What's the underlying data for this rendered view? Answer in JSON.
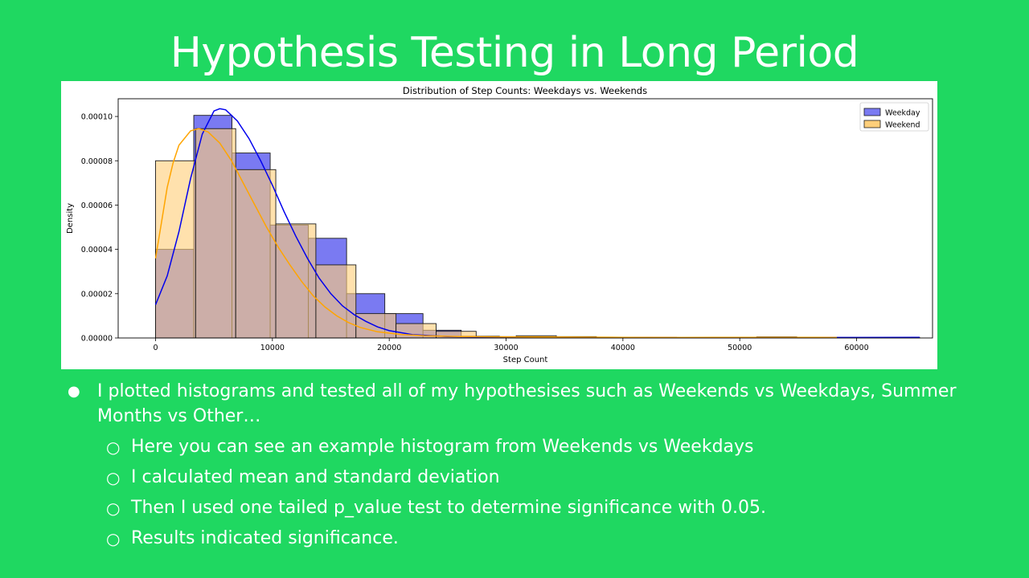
{
  "slide": {
    "title": "Hypothesis Testing in Long Period",
    "bullets": [
      {
        "text": " I plotted histograms and tested all of my hypothesises such as Weekends vs Weekdays, Summer Months vs Other…",
        "children": [
          "Here you can see an example histogram from Weekends vs Weekdays",
          "I calculated mean and standard deviation",
          "Then I used one tailed p_value test to determine significance with 0.05.",
          "Results indicated significance."
        ]
      }
    ]
  },
  "chart_data": {
    "type": "bar",
    "title": "Distribution of Step Counts: Weekdays vs. Weekends",
    "xlabel": "Step Count",
    "ylabel": "Density",
    "xlim": [
      -3200,
      66500
    ],
    "ylim": [
      0,
      0.000108
    ],
    "xticks": [
      0,
      10000,
      20000,
      30000,
      40000,
      50000,
      60000
    ],
    "xtick_labels": [
      "0",
      "10000",
      "20000",
      "30000",
      "40000",
      "50000",
      "60000"
    ],
    "yticks": [
      0,
      2e-05,
      4e-05,
      6e-05,
      8e-05,
      0.0001
    ],
    "ytick_labels": [
      "0.00000",
      "0.00002",
      "0.00004",
      "0.00006",
      "0.00008",
      "0.00010"
    ],
    "legend_position": "top-right",
    "series": [
      {
        "name": "Weekday",
        "color": "#0000ee",
        "bar_fill": "#7a7af2",
        "bins": [
          [
            0,
            3270,
            4e-05
          ],
          [
            3270,
            6540,
            0.0001005
          ],
          [
            6540,
            9810,
            8.35e-05
          ],
          [
            9810,
            13080,
            5.1e-05
          ],
          [
            13080,
            16350,
            4.5e-05
          ],
          [
            16350,
            19620,
            2e-05
          ],
          [
            19620,
            22890,
            1.1e-05
          ],
          [
            22890,
            26160,
            3.5e-06
          ],
          [
            26160,
            29430,
            8e-07
          ],
          [
            29430,
            32700,
            5e-07
          ],
          [
            32700,
            35970,
            4e-07
          ],
          [
            35970,
            39240,
            3e-07
          ],
          [
            39240,
            42510,
            3e-07
          ],
          [
            42510,
            45780,
            2e-07
          ],
          [
            45780,
            49050,
            2e-07
          ],
          [
            49050,
            52320,
            2e-07
          ],
          [
            52320,
            55590,
            2e-07
          ],
          [
            55590,
            58860,
            2e-07
          ],
          [
            58860,
            62130,
            2e-07
          ],
          [
            62130,
            65400,
            2e-07
          ]
        ],
        "kde": [
          [
            0,
            1.5e-05
          ],
          [
            1000,
            2.8e-05
          ],
          [
            2000,
            4.8e-05
          ],
          [
            3000,
            7.2e-05
          ],
          [
            4000,
            9.2e-05
          ],
          [
            5000,
            0.0001025
          ],
          [
            5500,
            0.0001035
          ],
          [
            6000,
            0.000103
          ],
          [
            7000,
            9.8e-05
          ],
          [
            8000,
            9e-05
          ],
          [
            9000,
            8e-05
          ],
          [
            10000,
            6.9e-05
          ],
          [
            11000,
            5.7e-05
          ],
          [
            12000,
            4.6e-05
          ],
          [
            13000,
            3.6e-05
          ],
          [
            14000,
            2.7e-05
          ],
          [
            15000,
            2e-05
          ],
          [
            16000,
            1.45e-05
          ],
          [
            17000,
            1.05e-05
          ],
          [
            18000,
            7.5e-06
          ],
          [
            19000,
            5e-06
          ],
          [
            20000,
            3.3e-06
          ],
          [
            22000,
            1.5e-06
          ],
          [
            25000,
            6e-07
          ],
          [
            30000,
            3e-07
          ],
          [
            35000,
            3e-07
          ],
          [
            40000,
            2e-07
          ],
          [
            45000,
            1e-07
          ],
          [
            50000,
            1e-07
          ],
          [
            55000,
            2e-07
          ],
          [
            60000,
            2e-07
          ],
          [
            65400,
            3e-07
          ]
        ]
      },
      {
        "name": "Weekend",
        "color": "#ffa500",
        "bar_fill": "#ffcf7a",
        "bins": [
          [
            0,
            3430,
            8e-05
          ],
          [
            3430,
            6860,
            9.45e-05
          ],
          [
            6860,
            10290,
            7.6e-05
          ],
          [
            10290,
            13720,
            5.15e-05
          ],
          [
            13720,
            17150,
            3.3e-05
          ],
          [
            17150,
            20580,
            1.1e-05
          ],
          [
            20580,
            24010,
            6.5e-06
          ],
          [
            24010,
            27440,
            3e-06
          ],
          [
            27440,
            30870,
            6e-07
          ],
          [
            30870,
            34300,
            1e-06
          ],
          [
            34300,
            37730,
            6e-07
          ],
          [
            37730,
            41160,
            3e-07
          ],
          [
            41160,
            44590,
            3e-07
          ],
          [
            44590,
            48020,
            2e-07
          ],
          [
            48020,
            51450,
            2e-07
          ],
          [
            51450,
            54880,
            5e-07
          ],
          [
            54880,
            58310,
            2e-07
          ]
        ],
        "kde": [
          [
            0,
            3.6e-05
          ],
          [
            500,
            5.2e-05
          ],
          [
            1000,
            6.8e-05
          ],
          [
            1500,
            7.9e-05
          ],
          [
            2000,
            8.7e-05
          ],
          [
            3000,
            9.35e-05
          ],
          [
            3700,
            9.45e-05
          ],
          [
            4500,
            9.3e-05
          ],
          [
            5500,
            8.8e-05
          ],
          [
            6500,
            8e-05
          ],
          [
            7500,
            7e-05
          ],
          [
            8500,
            6e-05
          ],
          [
            9500,
            5e-05
          ],
          [
            10500,
            4.1e-05
          ],
          [
            11500,
            3.3e-05
          ],
          [
            12500,
            2.55e-05
          ],
          [
            13500,
            1.9e-05
          ],
          [
            14500,
            1.4e-05
          ],
          [
            15500,
            1e-05
          ],
          [
            16500,
            7e-06
          ],
          [
            17500,
            4.8e-06
          ],
          [
            19000,
            2.8e-06
          ],
          [
            21000,
            1.6e-06
          ],
          [
            23000,
            1e-06
          ],
          [
            26000,
            6e-07
          ],
          [
            30000,
            5e-07
          ],
          [
            35000,
            4e-07
          ],
          [
            40000,
            3e-07
          ],
          [
            45000,
            2e-07
          ],
          [
            50000,
            3e-07
          ],
          [
            55000,
            3e-07
          ],
          [
            58310,
            2e-07
          ]
        ]
      }
    ]
  }
}
